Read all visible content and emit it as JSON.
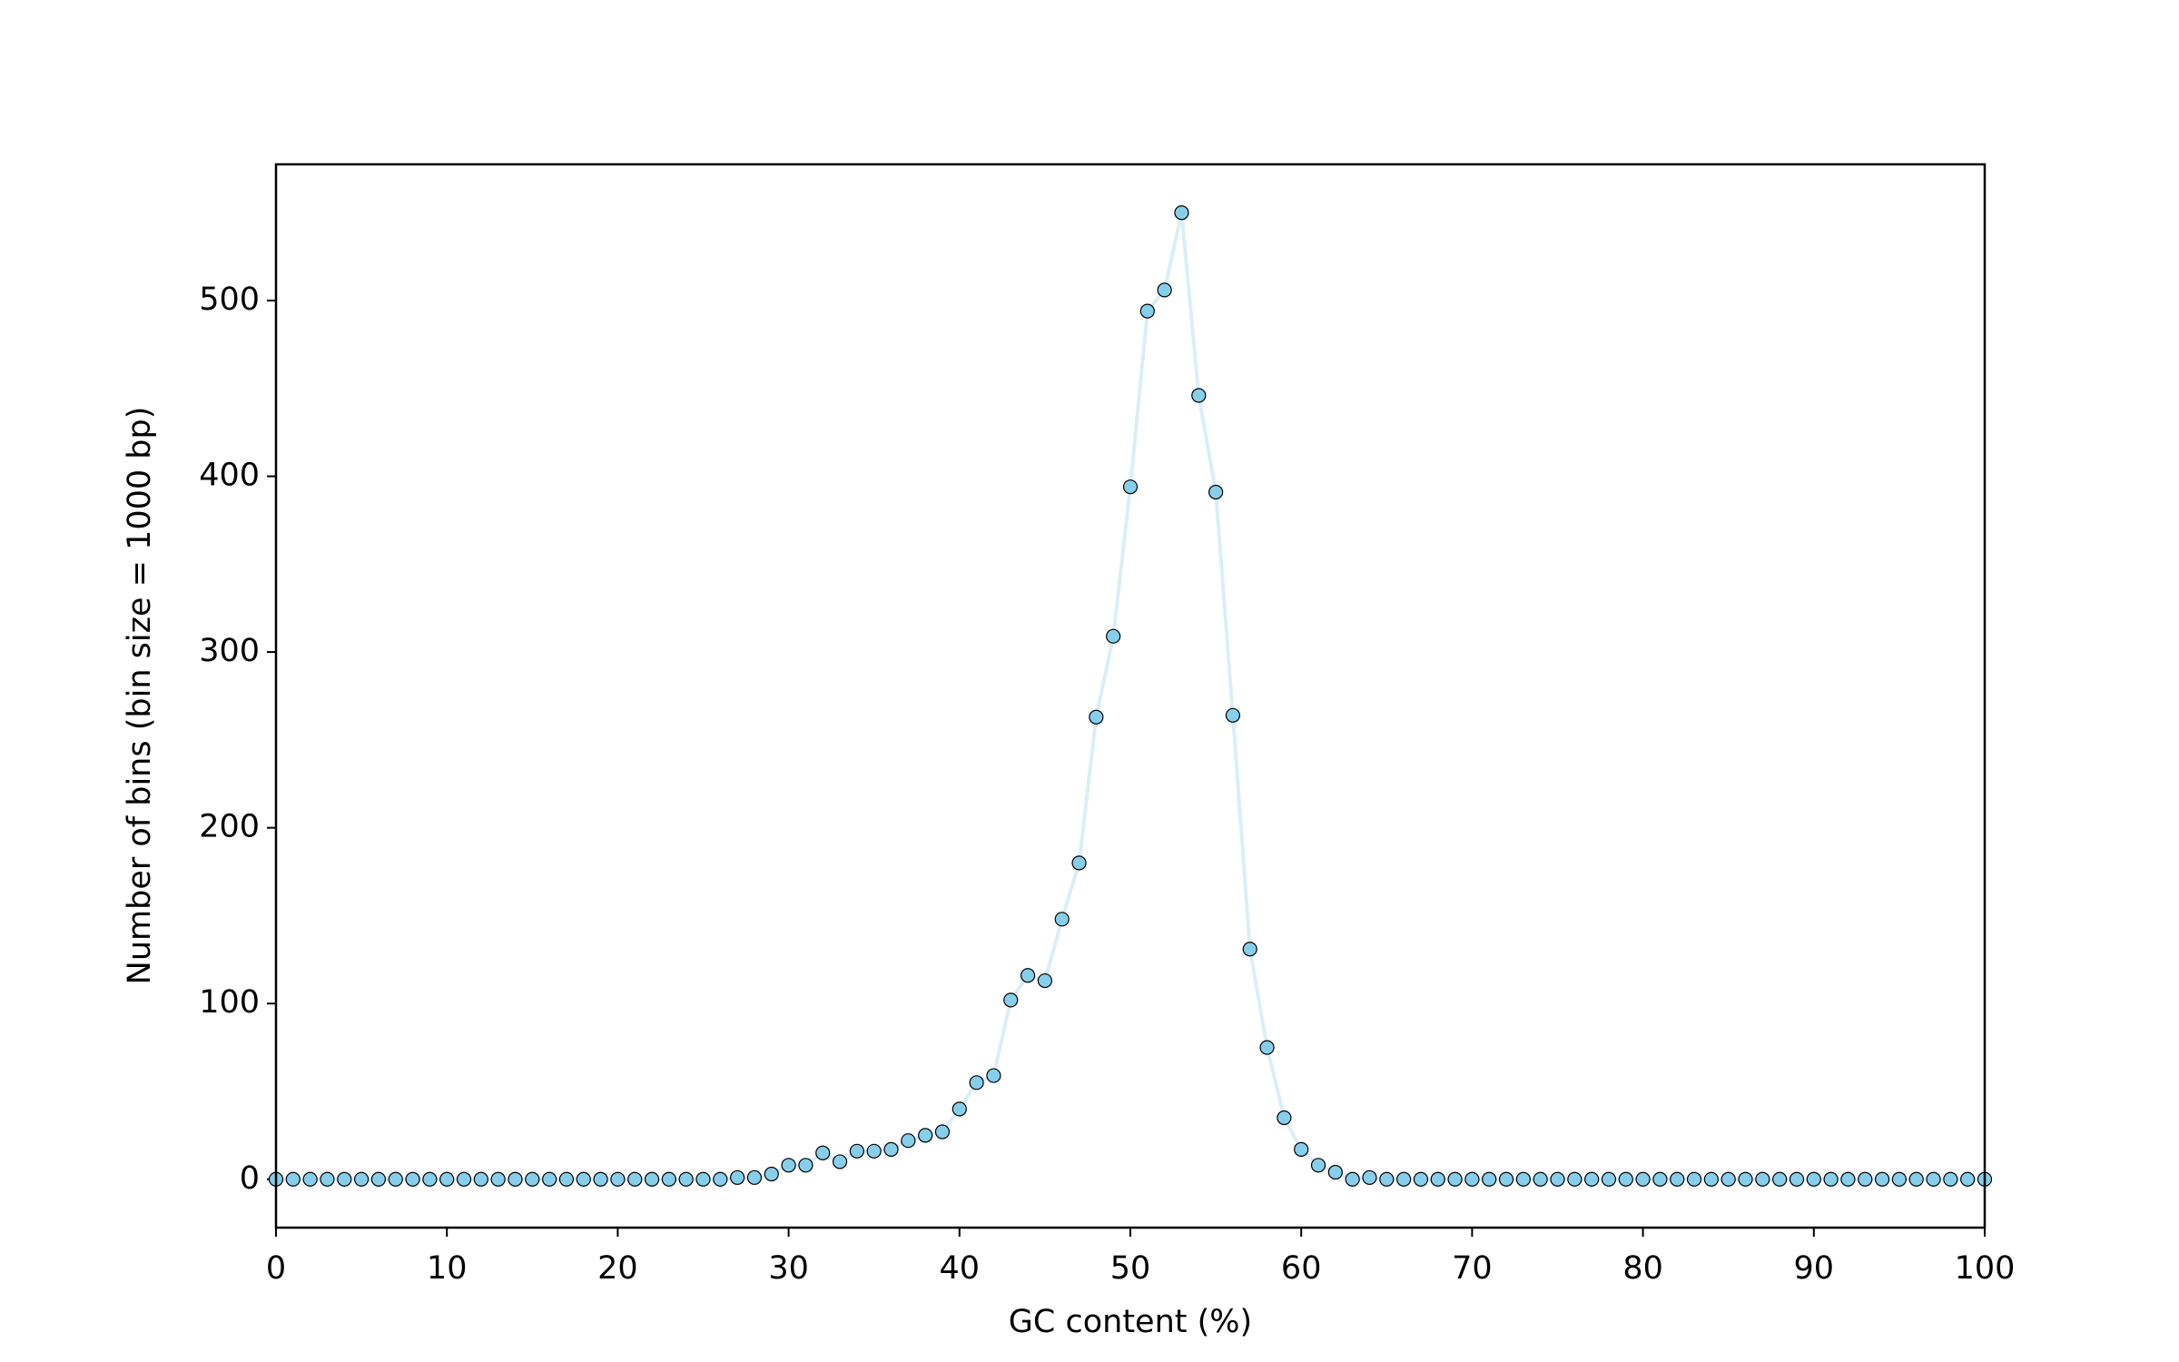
{
  "chart_data": {
    "type": "line",
    "x_label": "GC content (%)",
    "y_label": "Number of bins (bin size = 1000 bp)",
    "x": [
      0,
      1,
      2,
      3,
      4,
      5,
      6,
      7,
      8,
      9,
      10,
      11,
      12,
      13,
      14,
      15,
      16,
      17,
      18,
      19,
      20,
      21,
      22,
      23,
      24,
      25,
      26,
      27,
      28,
      29,
      30,
      31,
      32,
      33,
      34,
      35,
      36,
      37,
      38,
      39,
      40,
      41,
      42,
      43,
      44,
      45,
      46,
      47,
      48,
      49,
      50,
      51,
      52,
      53,
      54,
      55,
      56,
      57,
      58,
      59,
      60,
      61,
      62,
      63,
      64,
      65,
      66,
      67,
      68,
      69,
      70,
      71,
      72,
      73,
      74,
      75,
      76,
      77,
      78,
      79,
      80,
      81,
      82,
      83,
      84,
      85,
      86,
      87,
      88,
      89,
      90,
      91,
      92,
      93,
      94,
      95,
      96,
      97,
      98,
      99,
      100
    ],
    "values": [
      0,
      0,
      0,
      0,
      0,
      0,
      0,
      0,
      0,
      0,
      0,
      0,
      0,
      0,
      0,
      0,
      0,
      0,
      0,
      0,
      0,
      0,
      0,
      0,
      0,
      0,
      0,
      1,
      1,
      3,
      8,
      8,
      15,
      10,
      16,
      16,
      17,
      22,
      25,
      27,
      40,
      55,
      59,
      102,
      116,
      113,
      148,
      180,
      263,
      309,
      394,
      494,
      506,
      550,
      446,
      391,
      264,
      131,
      75,
      35,
      17,
      8,
      4,
      0,
      1,
      0,
      0,
      0,
      0,
      0,
      0,
      0,
      0,
      0,
      0,
      0,
      0,
      0,
      0,
      0,
      0,
      0,
      0,
      0,
      0,
      0,
      0,
      0,
      0,
      0,
      0,
      0,
      0,
      0,
      0,
      0,
      0,
      0,
      0,
      0,
      0
    ],
    "color": "#87ceeb",
    "line_color": "#dbeef7",
    "marker_edge_color": "#000000",
    "xlim": [
      0,
      100
    ],
    "xticks": [
      0,
      10,
      20,
      30,
      40,
      50,
      60,
      70,
      80,
      90,
      100
    ],
    "ylim": [
      -27.5,
      577.5
    ],
    "yticks": [
      0,
      100,
      200,
      300,
      400,
      500
    ],
    "grid": false
  }
}
